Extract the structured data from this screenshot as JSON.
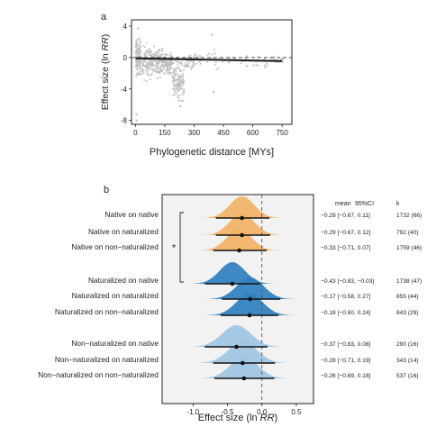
{
  "colors": {
    "native": "#f2b366",
    "naturalized": "#2f7fbf",
    "non_naturalized": "#9ec5e4",
    "scatter": "#bdbdbd",
    "fit": "#222222",
    "panel_b_bg": "#f2f2f2"
  },
  "chart_data": [
    {
      "type": "scatter",
      "panel_label": "a",
      "xlabel": "Phylogenetic distance [MYs]",
      "ylabel_pre": "Effect size (ln ",
      "ylabel_italic": "RR",
      "ylabel_post": ")",
      "xlim": [
        -20,
        800
      ],
      "ylim": [
        -8.5,
        4.8
      ],
      "xticks": [
        0,
        150,
        300,
        450,
        600,
        750
      ],
      "yticks": [
        4,
        0,
        -4,
        -8
      ],
      "reference_line_y": 0,
      "fit_line": {
        "x": [
          0,
          750
        ],
        "y": [
          -0.1,
          -0.45
        ]
      },
      "point_clusters": [
        {
          "x_range": [
            0,
            30
          ],
          "y_range": [
            -3.2,
            3.3
          ],
          "n": 120
        },
        {
          "x_range": [
            35,
            80
          ],
          "y_range": [
            -3.5,
            2.5
          ],
          "n": 90
        },
        {
          "x_range": [
            80,
            140
          ],
          "y_range": [
            -3.0,
            2.0
          ],
          "n": 120
        },
        {
          "x_range": [
            140,
            190
          ],
          "y_range": [
            -2.5,
            1.0
          ],
          "n": 90
        },
        {
          "x_range": [
            190,
            250
          ],
          "y_range": [
            -6.5,
            0.5
          ],
          "n": 130
        },
        {
          "x_range": [
            250,
            300
          ],
          "y_range": [
            -2.0,
            0.8
          ],
          "n": 40
        },
        {
          "x_range": [
            300,
            430
          ],
          "y_range": [
            -2.5,
            1.5
          ],
          "n": 25
        },
        {
          "x_range": [
            430,
            560
          ],
          "y_range": [
            -1.0,
            0.3
          ],
          "n": 12
        },
        {
          "x_range": [
            560,
            680
          ],
          "y_range": [
            -2.0,
            0.5
          ],
          "n": 20
        },
        {
          "x_range": [
            690,
            760
          ],
          "y_range": [
            -1.0,
            0.3
          ],
          "n": 25
        }
      ],
      "outliers": [
        {
          "x": 6,
          "y": -8.0
        },
        {
          "x": 14,
          "y": 3.7
        },
        {
          "x": 5,
          "y": -7.2
        },
        {
          "x": 390,
          "y": 2.9
        },
        {
          "x": 400,
          "y": -4.4
        },
        {
          "x": 230,
          "y": -6.2
        }
      ]
    },
    {
      "type": "ridgeline",
      "panel_label": "b",
      "xlabel_pre": "Effect size (ln ",
      "xlabel_italic": "RR",
      "xlabel_post": ")",
      "xlim": [
        -1.45,
        0.75
      ],
      "xticks": [
        -1.0,
        -0.5,
        0.0,
        0.5
      ],
      "xtick_labels": [
        "-1.0",
        "-0.5",
        "0.0",
        "0.5"
      ],
      "reference_line_x": 0,
      "table_headers": {
        "mean": "mean",
        "ci": "95%CI",
        "k": "k"
      },
      "significance_marker": "*",
      "significance_bracket_rows": [
        0,
        3
      ],
      "rows": [
        {
          "label": "Native on native",
          "group": "native",
          "mean": -0.29,
          "lo": -0.67,
          "hi": 0.11,
          "stats": "−0.29 [−0.67,  0.11]",
          "k": "1732 (66)"
        },
        {
          "label": "Native on naturalized",
          "group": "native",
          "mean": -0.29,
          "lo": -0.67,
          "hi": 0.12,
          "stats": "−0.29 [−0.67,  0.12]",
          "k": "792 (40)"
        },
        {
          "label": "Native on non−naturalized",
          "group": "native",
          "mean": -0.33,
          "lo": -0.71,
          "hi": 0.07,
          "stats": "−0.33 [−0.71,  0.07]",
          "k": "1759 (46)"
        },
        {
          "label": "Naturalized on native",
          "group": "naturalized",
          "mean": -0.43,
          "lo": -0.83,
          "hi": -0.03,
          "stats": "−0.43 [−0.83, −0.03]",
          "k": "1738 (47)"
        },
        {
          "label": "Naturalized on naturalized",
          "group": "naturalized",
          "mean": -0.17,
          "lo": -0.58,
          "hi": 0.27,
          "stats": "−0.17 [−0.58,  0.27]",
          "k": "855 (44)"
        },
        {
          "label": "Naturalized on non−naturalized",
          "group": "naturalized",
          "mean": -0.18,
          "lo": -0.6,
          "hi": 0.24,
          "stats": "−0.18 [−0.60,  0.24]",
          "k": "843 (29)"
        },
        {
          "label": "Non−naturalized on native",
          "group": "non_naturalized",
          "mean": -0.37,
          "lo": -0.83,
          "hi": 0.08,
          "stats": "−0.37 [−0.83,  0.08]",
          "k": "290 (16)"
        },
        {
          "label": "Non−naturalized on naturalized",
          "group": "non_naturalized",
          "mean": -0.28,
          "lo": -0.71,
          "hi": 0.19,
          "stats": "−0.28 [−0.71,  0.19]",
          "k": "343 (14)"
        },
        {
          "label": "Non−naturalized on non−naturalized",
          "group": "non_naturalized",
          "mean": -0.26,
          "lo": -0.69,
          "hi": 0.18,
          "stats": "−0.26 [−0.69,  0.18]",
          "k": "537 (16)"
        }
      ]
    }
  ]
}
